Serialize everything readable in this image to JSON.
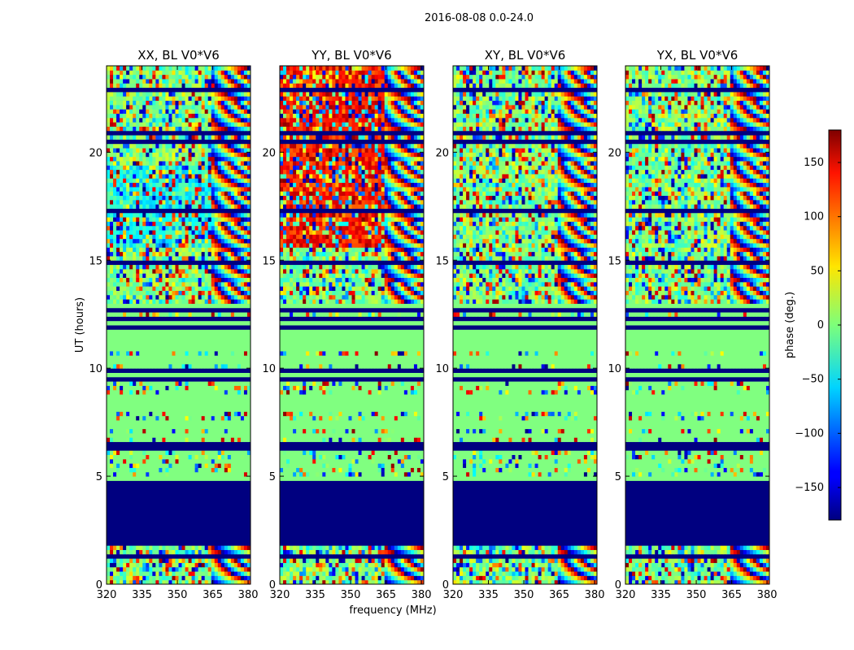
{
  "chart_data": {
    "type": "heatmap",
    "suptitle": "2016-08-08 0.0-24.0",
    "xlabel": "frequency (MHz)",
    "ylabel": "UT (hours)",
    "x_range": [
      320,
      381
    ],
    "y_range": [
      0,
      24
    ],
    "x_ticks": [
      320,
      335,
      350,
      365,
      380
    ],
    "y_ticks": [
      0,
      5,
      10,
      15,
      20
    ],
    "panels": [
      {
        "title": "XX, BL V0*V6",
        "baseline": "XX"
      },
      {
        "title": "YY, BL V0*V6",
        "baseline": "YY"
      },
      {
        "title": "XY, BL V0*V6",
        "baseline": "XY"
      },
      {
        "title": "YX, BL V0*V6",
        "baseline": "YX"
      }
    ],
    "colorbar": {
      "label": "phase (deg.)",
      "range": [
        -180,
        180
      ],
      "ticks": [
        -150,
        -100,
        -50,
        0,
        50,
        100,
        150
      ],
      "colormap": "jet"
    },
    "masked_ut_intervals": [
      [
        1.75,
        4.85
      ]
    ],
    "flat_phase_ut_intervals": [
      [
        10.85,
        12.25
      ],
      [
        12.55,
        13.05
      ]
    ]
  }
}
